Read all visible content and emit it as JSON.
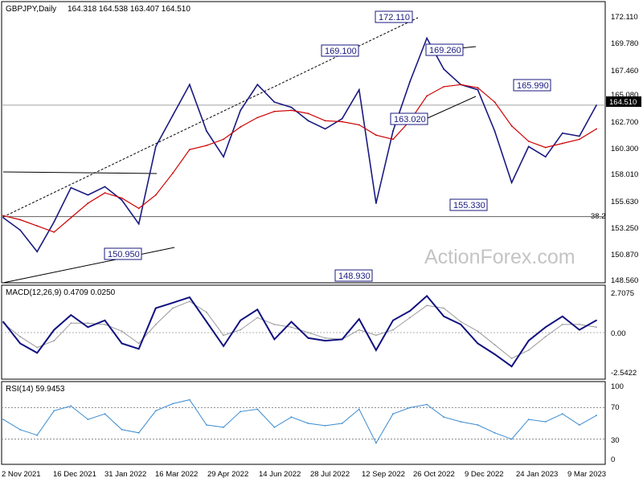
{
  "chart_data": [
    {
      "type": "line",
      "title": "GBPJPY,Daily",
      "ohlc_header": "164.318 164.538 163.407 164.510",
      "xlabel": "",
      "ylabel": "",
      "ylim": [
        147.6,
        173.3
      ],
      "y_ticks": [
        "172.110",
        "169.780",
        "167.460",
        "165.080",
        "162.700",
        "160.300",
        "158.010",
        "155.630",
        "153.250",
        "150.870",
        "148.560"
      ],
      "x_ticks": [
        "2 Nov 2021",
        "16 Dec 2021",
        "31 Jan 2022",
        "16 Mar 2022",
        "29 Apr 2022",
        "14 Jun 2022",
        "28 Jul 2022",
        "12 Sep 2022",
        "26 Oct 2022",
        "9 Dec 2022",
        "24 Jan 2023",
        "9 Mar 2023"
      ],
      "current_price": "164.510",
      "fib_label": "38.2",
      "fib_level": 153.7,
      "callouts": [
        "172.110",
        "169.100",
        "169.260",
        "165.990",
        "163.020",
        "155.330",
        "150.950",
        "148.930"
      ],
      "watermark": "ActionForex.com",
      "x": [
        "2 Nov 2021",
        "16 Nov 2021",
        "30 Nov 2021",
        "16 Dec 2021",
        "31 Dec 2021",
        "16 Jan 2022",
        "31 Jan 2022",
        "15 Feb 2022",
        "1 Mar 2022",
        "16 Mar 2022",
        "31 Mar 2022",
        "15 Apr 2022",
        "29 Apr 2022",
        "15 May 2022",
        "31 May 2022",
        "14 Jun 2022",
        "28 Jun 2022",
        "14 Jul 2022",
        "28 Jul 2022",
        "12 Aug 2022",
        "28 Aug 2022",
        "12 Sep 2022",
        "22 Sep 2022",
        "5 Oct 2022",
        "19 Oct 2022",
        "26 Oct 2022",
        "9 Nov 2022",
        "23 Nov 2022",
        "9 Dec 2022",
        "23 Dec 2022",
        "9 Jan 2023",
        "24 Jan 2023",
        "8 Feb 2023",
        "22 Feb 2023",
        "9 Mar 2023",
        "20 Mar 2023"
      ],
      "series": [
        {
          "values": [
            153.6,
            152.4,
            150.3,
            153.2,
            156.5,
            155.8,
            156.6,
            155.3,
            153.0,
            160.5,
            163.5,
            166.5,
            162.0,
            159.5,
            164.0,
            166.5,
            164.8,
            164.3,
            163.0,
            162.2,
            163.2,
            166.0,
            155.0,
            162.0,
            166.8,
            171.0,
            168.0,
            166.5,
            166.0,
            162.0,
            157.0,
            160.5,
            159.5,
            161.8,
            161.5,
            164.5
          ]
        },
        {
          "values": [
            153.8,
            153.4,
            152.8,
            152.2,
            153.6,
            155.0,
            156.0,
            155.5,
            154.5,
            155.8,
            157.9,
            160.2,
            160.6,
            161.2,
            162.4,
            163.3,
            163.9,
            164.0,
            163.7,
            163.0,
            162.9,
            162.6,
            161.6,
            161.2,
            163.0,
            165.4,
            166.3,
            166.5,
            166.2,
            164.8,
            162.5,
            161.0,
            160.4,
            160.8,
            161.2,
            162.2
          ]
        }
      ],
      "colors": {
        "price": "#1a1a80",
        "ma": "#cc0000",
        "grid": "#a0a0a0",
        "box": "#1a1a80"
      }
    },
    {
      "type": "line",
      "title": "MACD(12,26,9) 0.4709 0.0250",
      "y_ticks": [
        "2.7075",
        "0.00",
        "-2.5422"
      ],
      "ylim": [
        -3.2,
        3.2
      ],
      "x": [
        "2 Nov 2021",
        "16 Nov 2021",
        "30 Nov 2021",
        "16 Dec 2021",
        "31 Dec 2021",
        "16 Jan 2022",
        "31 Jan 2022",
        "15 Feb 2022",
        "1 Mar 2022",
        "16 Mar 2022",
        "31 Mar 2022",
        "15 Apr 2022",
        "29 Apr 2022",
        "15 May 2022",
        "31 May 2022",
        "14 Jun 2022",
        "28 Jun 2022",
        "14 Jul 2022",
        "28 Jul 2022",
        "12 Aug 2022",
        "28 Aug 2022",
        "12 Sep 2022",
        "22 Sep 2022",
        "5 Oct 2022",
        "19 Oct 2022",
        "26 Oct 2022",
        "9 Nov 2022",
        "23 Nov 2022",
        "9 Dec 2022",
        "23 Dec 2022",
        "9 Jan 2023",
        "24 Jan 2023",
        "8 Feb 2023",
        "22 Feb 2023",
        "9 Mar 2023",
        "20 Mar 2023"
      ],
      "series": [
        {
          "values": [
            0.8,
            -0.8,
            -1.5,
            0.2,
            1.3,
            0.4,
            0.9,
            -0.8,
            -1.2,
            1.8,
            2.2,
            2.6,
            0.8,
            -1.0,
            0.9,
            1.7,
            -0.5,
            0.8,
            -0.4,
            -0.6,
            -0.5,
            1.0,
            -1.3,
            0.9,
            1.6,
            2.7,
            1.2,
            0.6,
            -0.8,
            -1.6,
            -2.5,
            -0.6,
            0.4,
            1.2,
            0.2,
            0.9
          ]
        },
        {
          "values": [
            0.7,
            -0.3,
            -1.1,
            -0.6,
            0.7,
            0.7,
            0.6,
            0.1,
            -0.8,
            0.6,
            1.8,
            2.3,
            1.5,
            -0.2,
            0.2,
            1.1,
            0.6,
            0.4,
            0.0,
            -0.4,
            -0.5,
            0.2,
            -0.2,
            0.2,
            1.1,
            2.0,
            1.8,
            0.8,
            0.1,
            -0.9,
            -1.9,
            -1.3,
            -0.3,
            0.6,
            0.6,
            0.4
          ]
        }
      ],
      "colors": {
        "macd": "#101080",
        "signal": "#999999"
      }
    },
    {
      "type": "line",
      "title": "RSI(14) 59.9453",
      "y_ticks": [
        "100",
        "70",
        "30",
        "0"
      ],
      "ylim": [
        0,
        100
      ],
      "levels": [
        70,
        30
      ],
      "x": [
        "2 Nov 2021",
        "16 Nov 2021",
        "30 Nov 2021",
        "16 Dec 2021",
        "31 Dec 2021",
        "16 Jan 2022",
        "31 Jan 2022",
        "15 Feb 2022",
        "1 Mar 2022",
        "16 Mar 2022",
        "31 Mar 2022",
        "15 Apr 2022",
        "29 Apr 2022",
        "15 May 2022",
        "31 May 2022",
        "14 Jun 2022",
        "28 Jun 2022",
        "14 Jul 2022",
        "28 Jul 2022",
        "12 Aug 2022",
        "28 Aug 2022",
        "12 Sep 2022",
        "22 Sep 2022",
        "5 Oct 2022",
        "19 Oct 2022",
        "26 Oct 2022",
        "9 Nov 2022",
        "23 Nov 2022",
        "9 Dec 2022",
        "23 Dec 2022",
        "9 Jan 2023",
        "24 Jan 2023",
        "8 Feb 2023",
        "22 Feb 2023",
        "9 Mar 2023",
        "20 Mar 2023"
      ],
      "series": [
        {
          "values": [
            55,
            42,
            35,
            66,
            72,
            55,
            62,
            42,
            38,
            66,
            75,
            80,
            48,
            45,
            65,
            68,
            45,
            58,
            50,
            47,
            50,
            68,
            25,
            62,
            70,
            74,
            58,
            52,
            48,
            38,
            30,
            55,
            52,
            62,
            48,
            60
          ]
        }
      ],
      "colors": {
        "rsi": "#3b8bd0",
        "level": "#888888"
      }
    }
  ]
}
